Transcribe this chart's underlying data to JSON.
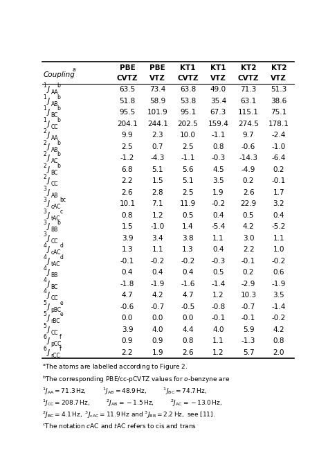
{
  "col_headers": [
    [
      "PBE",
      "PBE",
      "KT1",
      "KT1",
      "KT2",
      "KT2"
    ],
    [
      "CVTZ",
      "VTZ",
      "CVTZ",
      "VTZ",
      "CVTZ",
      "VTZ"
    ]
  ],
  "row_labels": [
    {
      "super_left": "1",
      "sub": "AA",
      "super_right": "b"
    },
    {
      "super_left": "1",
      "sub": "AB",
      "super_right": "b"
    },
    {
      "super_left": "1",
      "sub": "BC",
      "super_right": "b"
    },
    {
      "super_left": "1",
      "sub": "CC",
      "super_right": "b"
    },
    {
      "super_left": "2",
      "sub": "AA",
      "super_right": ""
    },
    {
      "super_left": "2",
      "sub": "AB",
      "super_right": "b"
    },
    {
      "super_left": "2",
      "sub": "AC",
      "super_right": "b"
    },
    {
      "super_left": "2",
      "sub": "BC",
      "super_right": "b"
    },
    {
      "super_left": "2",
      "sub": "CC",
      "super_right": ""
    },
    {
      "super_left": "3",
      "sub": "AB",
      "super_right": ""
    },
    {
      "super_left": "3",
      "sub": "cAC",
      "super_right": "bc"
    },
    {
      "super_left": "3",
      "sub": "tAC",
      "super_right": "c"
    },
    {
      "super_left": "3",
      "sub": "BB",
      "super_right": "b"
    },
    {
      "super_left": "3",
      "sub": "CC",
      "super_right": ""
    },
    {
      "super_left": "4",
      "sub": "cAC",
      "super_right": "d"
    },
    {
      "super_left": "4",
      "sub": "tAC",
      "super_right": "d"
    },
    {
      "super_left": "4",
      "sub": "BB",
      "super_right": ""
    },
    {
      "super_left": "4",
      "sub": "BC",
      "super_right": ""
    },
    {
      "super_left": "4",
      "sub": "CC",
      "super_right": ""
    },
    {
      "super_left": "5",
      "sub": "pBC",
      "super_right": "e"
    },
    {
      "super_left": "5",
      "sub": "rBC",
      "super_right": "e"
    },
    {
      "super_left": "5",
      "sub": "CC",
      "super_right": ""
    },
    {
      "super_left": "6",
      "sub": "pCC",
      "super_right": "f"
    },
    {
      "super_left": "6",
      "sub": "rCC",
      "super_right": "f"
    }
  ],
  "data": [
    [
      63.5,
      73.4,
      63.8,
      49.0,
      71.3,
      51.3
    ],
    [
      51.8,
      58.9,
      53.8,
      35.4,
      63.1,
      38.6
    ],
    [
      95.5,
      101.9,
      95.1,
      67.3,
      115.1,
      75.1
    ],
    [
      204.1,
      244.1,
      202.5,
      159.4,
      274.5,
      178.1
    ],
    [
      9.9,
      2.3,
      10.0,
      -1.1,
      9.7,
      -2.4
    ],
    [
      2.5,
      0.7,
      2.5,
      0.8,
      -0.6,
      -1.0
    ],
    [
      -1.2,
      -4.3,
      -1.1,
      -0.3,
      -14.3,
      -6.4
    ],
    [
      6.8,
      5.1,
      5.6,
      4.5,
      -4.9,
      0.2
    ],
    [
      2.2,
      1.5,
      5.1,
      3.5,
      0.2,
      -0.1
    ],
    [
      2.6,
      2.8,
      2.5,
      1.9,
      2.6,
      1.7
    ],
    [
      10.1,
      7.1,
      11.9,
      -0.2,
      22.9,
      3.2
    ],
    [
      0.8,
      1.2,
      0.5,
      0.4,
      0.5,
      0.4
    ],
    [
      1.5,
      -1.0,
      1.4,
      -5.4,
      4.2,
      -5.2
    ],
    [
      3.9,
      3.4,
      3.8,
      1.1,
      3.0,
      1.1
    ],
    [
      1.3,
      1.1,
      1.3,
      0.4,
      2.2,
      1.0
    ],
    [
      -0.1,
      -0.2,
      -0.2,
      -0.3,
      -0.1,
      -0.2
    ],
    [
      0.4,
      0.4,
      0.4,
      0.5,
      0.2,
      0.6
    ],
    [
      -1.8,
      -1.9,
      -1.6,
      -1.4,
      -2.9,
      -1.9
    ],
    [
      4.7,
      4.2,
      4.7,
      1.2,
      10.3,
      3.5
    ],
    [
      -0.6,
      -0.7,
      -0.5,
      -0.8,
      -0.7,
      -1.4
    ],
    [
      0.0,
      0.0,
      0.0,
      -0.1,
      -0.1,
      -0.2
    ],
    [
      3.9,
      4.0,
      4.4,
      4.0,
      5.9,
      4.2
    ],
    [
      0.9,
      0.9,
      0.8,
      1.1,
      -1.3,
      0.8
    ],
    [
      2.2,
      1.9,
      2.6,
      1.2,
      5.7,
      2.0
    ]
  ],
  "header_fs": 7.5,
  "data_fs": 7.5,
  "label_fs": 7.5,
  "footnote_fs": 6.5
}
